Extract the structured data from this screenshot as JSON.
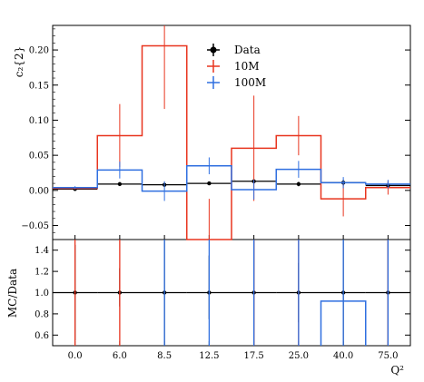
{
  "chart_data": {
    "type": "line",
    "categories": [
      "0.0",
      "6.0",
      "8.5",
      "12.5",
      "17.5",
      "25.0",
      "40.0",
      "75.0"
    ],
    "xlabel": "Q²",
    "top_panel": {
      "ylabel": "c₂{2}",
      "ylim": [
        -0.07,
        0.235
      ],
      "yticks": [
        -0.05,
        0.0,
        0.05,
        0.1,
        0.15,
        0.2
      ],
      "ytick_labels": [
        "−0.05",
        "0.00",
        "0.05",
        "0.10",
        "0.15",
        "0.20"
      ],
      "series": [
        {
          "name": "Data",
          "color": "#000000",
          "style": "points",
          "values": [
            0.002,
            0.009,
            0.008,
            0.01,
            0.013,
            0.009,
            0.011,
            0.007
          ],
          "errors": [
            0.001,
            0.002,
            0.002,
            0.002,
            0.003,
            0.003,
            0.004,
            0.004
          ]
        },
        {
          "name": "10M",
          "color": "#e8351f",
          "style": "step",
          "values": [
            0.003,
            0.078,
            0.206,
            -0.072,
            0.06,
            0.078,
            -0.012,
            0.004
          ],
          "errors": [
            0.002,
            0.045,
            0.09,
            0.06,
            0.075,
            0.028,
            0.025,
            0.01
          ]
        },
        {
          "name": "100M",
          "color": "#2f6fe0",
          "style": "step",
          "values": [
            0.004,
            0.029,
            -0.001,
            0.035,
            0.001,
            0.03,
            0.011,
            0.009
          ],
          "errors": [
            0.002,
            0.012,
            0.014,
            0.012,
            0.014,
            0.012,
            0.008,
            0.006
          ]
        }
      ]
    },
    "ratio_panel": {
      "ylabel": "MC/Data",
      "ylim": [
        0.5,
        1.5
      ],
      "yticks": [
        0.6,
        0.8,
        1.0,
        1.2,
        1.4
      ],
      "ytick_labels": [
        "0.6",
        "0.8",
        "1.0",
        "1.2",
        "1.4"
      ],
      "series": [
        {
          "name": "Data",
          "color": "#000000",
          "style": "points",
          "values": [
            1.0,
            1.0,
            1.0,
            1.0,
            1.0,
            1.0,
            1.0,
            1.0
          ],
          "err_low": [
            0.45,
            0.13,
            0.5,
            0.25,
            0.5,
            0.28,
            0.5,
            0.5
          ],
          "err_high": [
            0.45,
            0.23,
            0.5,
            0.35,
            0.5,
            0.28,
            0.5,
            0.5
          ]
        },
        {
          "name": "10M",
          "color": "#e8351f",
          "style": "vlines",
          "indices": [
            0,
            1,
            4,
            5,
            7
          ]
        },
        {
          "name": "100M",
          "color": "#2f6fe0",
          "style": "step",
          "values": [
            null,
            null,
            null,
            null,
            null,
            null,
            0.92,
            null
          ],
          "vline_indices": [
            2,
            3,
            4,
            5,
            6,
            7
          ]
        }
      ]
    },
    "legend_placement": "top-center"
  }
}
